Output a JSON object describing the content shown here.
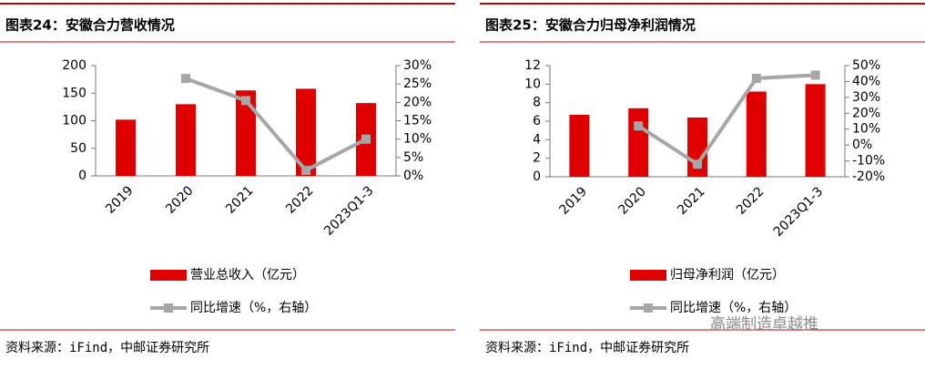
{
  "chart_data": [
    {
      "type": "bar-line",
      "title": "图表24：安徽合力营收情况",
      "source": "资料来源：iFind，中邮证券研究所",
      "categories": [
        "2019",
        "2020",
        "2021",
        "2022",
        "2023Q1-3"
      ],
      "series": [
        {
          "name": "营业总收入（亿元）",
          "color": "#e00000",
          "type": "bar",
          "values": [
            102,
            130,
            155,
            158,
            132
          ]
        },
        {
          "name": "同比增速（%，右轴）",
          "color": "#a6a6a6",
          "type": "line",
          "axis": "y2",
          "values": [
            null,
            26.5,
            20.5,
            1.5,
            10
          ]
        }
      ],
      "ylim": [
        0,
        200
      ],
      "yticks": [
        0,
        50,
        100,
        150,
        200
      ],
      "y2lim": [
        0,
        30
      ],
      "y2ticks": [
        {
          "value": 0,
          "label": "0%"
        },
        {
          "value": 5,
          "label": "5%"
        },
        {
          "value": 10,
          "label": "10%"
        },
        {
          "value": 15,
          "label": "15%"
        },
        {
          "value": 20,
          "label": "20%"
        },
        {
          "value": 25,
          "label": "25%"
        },
        {
          "value": 30,
          "label": "30%"
        }
      ]
    },
    {
      "type": "bar-line",
      "title": "图表25：安徽合力归母净利润情况",
      "source": "资料来源：iFind，中邮证券研究所",
      "categories": [
        "2019",
        "2020",
        "2021",
        "2022",
        "2023Q1-3"
      ],
      "series": [
        {
          "name": "归母净利润（亿元）",
          "color": "#e00000",
          "type": "bar",
          "values": [
            6.7,
            7.4,
            6.4,
            9.2,
            10.0
          ]
        },
        {
          "name": "同比增速（%，右轴）",
          "color": "#a6a6a6",
          "type": "line",
          "axis": "y2",
          "values": [
            null,
            12,
            -12,
            42,
            44
          ]
        }
      ],
      "ylim": [
        0,
        12
      ],
      "yticks": [
        0,
        2,
        4,
        6,
        8,
        10,
        12
      ],
      "y2lim": [
        -20,
        50
      ],
      "y2ticks": [
        {
          "value": -20,
          "label": "-20%"
        },
        {
          "value": -10,
          "label": "-10%"
        },
        {
          "value": 0,
          "label": "0%"
        },
        {
          "value": 10,
          "label": "10%"
        },
        {
          "value": 20,
          "label": "20%"
        },
        {
          "value": 30,
          "label": "30%"
        },
        {
          "value": 40,
          "label": "40%"
        },
        {
          "value": 50,
          "label": "50%"
        }
      ]
    }
  ],
  "watermark": "高端制造卓越推"
}
